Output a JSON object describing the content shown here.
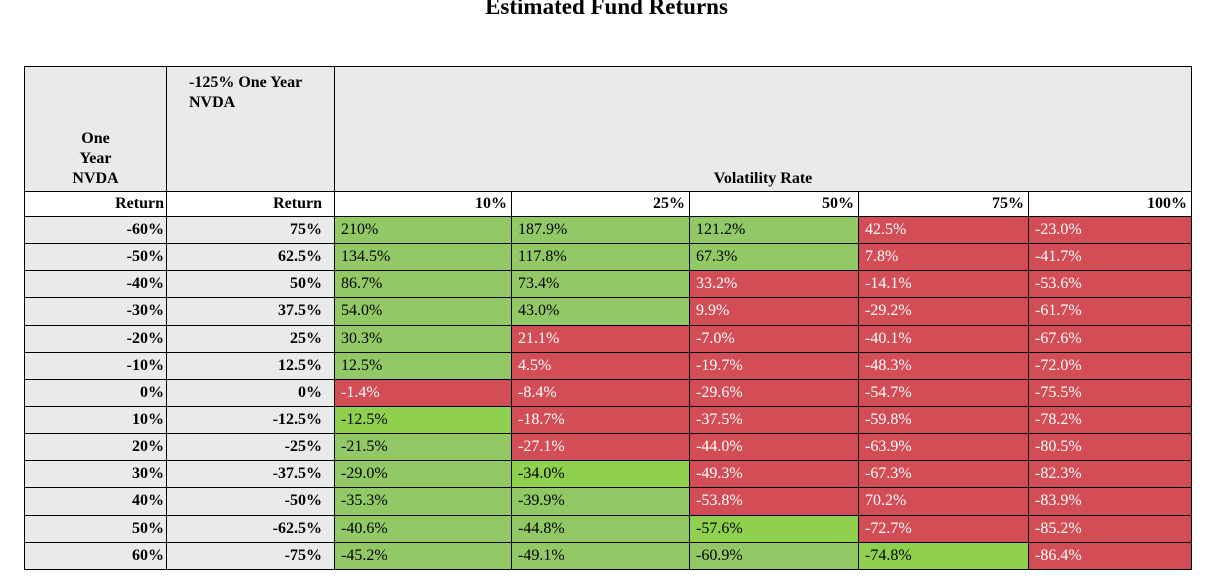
{
  "title": "Estimated Fund Returns",
  "header": {
    "nvda_label": "One Year NVDA",
    "fund_label": "-125% One Year NVDA",
    "volatility_label": "Volatility Rate",
    "return_label": "Return"
  },
  "colors": {
    "green": "#92c865",
    "bright_green": "#8fd14f",
    "red": "#d24d56",
    "header_gray": "#e9ebeb"
  },
  "chart_data": {
    "type": "table",
    "title": "Estimated Fund Returns",
    "columns": [
      "10%",
      "25%",
      "50%",
      "75%",
      "100%"
    ],
    "rows": [
      {
        "nvda": "-60%",
        "fund": "75%",
        "values": [
          "210%",
          "187.9%",
          "121.2%",
          "42.5%",
          "-23.0%"
        ],
        "colors": [
          "pos",
          "pos",
          "pos",
          "neg",
          "neg"
        ]
      },
      {
        "nvda": "-50%",
        "fund": "62.5%",
        "values": [
          "134.5%",
          "117.8%",
          "67.3%",
          "7.8%",
          "-41.7%"
        ],
        "colors": [
          "pos",
          "pos",
          "pos",
          "neg",
          "neg"
        ]
      },
      {
        "nvda": "-40%",
        "fund": "50%",
        "values": [
          "86.7%",
          "73.4%",
          "33.2%",
          "-14.1%",
          "-53.6%"
        ],
        "colors": [
          "pos",
          "pos",
          "neg",
          "neg",
          "neg"
        ]
      },
      {
        "nvda": "-30%",
        "fund": "37.5%",
        "values": [
          "54.0%",
          "43.0%",
          "9.9%",
          "-29.2%",
          "-61.7%"
        ],
        "colors": [
          "pos",
          "pos",
          "neg",
          "neg",
          "neg"
        ]
      },
      {
        "nvda": "-20%",
        "fund": "25%",
        "values": [
          "30.3%",
          "21.1%",
          "-7.0%",
          "-40.1%",
          "-67.6%"
        ],
        "colors": [
          "pos",
          "neg",
          "neg",
          "neg",
          "neg"
        ]
      },
      {
        "nvda": "-10%",
        "fund": "12.5%",
        "values": [
          "12.5%",
          "4.5%",
          "-19.7%",
          "-48.3%",
          "-72.0%"
        ],
        "colors": [
          "pos",
          "neg",
          "neg",
          "neg",
          "neg"
        ]
      },
      {
        "nvda": "0%",
        "fund": "0%",
        "values": [
          "-1.4%",
          "-8.4%",
          "-29.6%",
          "-54.7%",
          "-75.5%"
        ],
        "colors": [
          "neg",
          "neg",
          "neg",
          "neg",
          "neg"
        ]
      },
      {
        "nvda": "10%",
        "fund": "-12.5%",
        "values": [
          "-12.5%",
          "-18.7%",
          "-37.5%",
          "-59.8%",
          "-78.2%"
        ],
        "colors": [
          "bright",
          "neg",
          "neg",
          "neg",
          "neg"
        ]
      },
      {
        "nvda": "20%",
        "fund": "-25%",
        "values": [
          "-21.5%",
          "-27.1%",
          "-44.0%",
          "-63.9%",
          "-80.5%"
        ],
        "colors": [
          "pos",
          "neg",
          "neg",
          "neg",
          "neg"
        ]
      },
      {
        "nvda": "30%",
        "fund": "-37.5%",
        "values": [
          "-29.0%",
          "-34.0%",
          "-49.3%",
          "-67.3%",
          "-82.3%"
        ],
        "colors": [
          "pos",
          "bright",
          "neg",
          "neg",
          "neg"
        ]
      },
      {
        "nvda": "40%",
        "fund": "-50%",
        "values": [
          "-35.3%",
          "-39.9%",
          "-53.8%",
          "70.2%",
          "-83.9%"
        ],
        "colors": [
          "pos",
          "pos",
          "neg",
          "neg",
          "neg"
        ]
      },
      {
        "nvda": "50%",
        "fund": "-62.5%",
        "values": [
          "-40.6%",
          "-44.8%",
          "-57.6%",
          "-72.7%",
          "-85.2%"
        ],
        "colors": [
          "pos",
          "pos",
          "bright",
          "neg",
          "neg"
        ]
      },
      {
        "nvda": "60%",
        "fund": "-75%",
        "values": [
          "-45.2%",
          "-49.1%",
          "-60.9%",
          "-74.8%",
          "-86.4%"
        ],
        "colors": [
          "pos",
          "pos",
          "pos",
          "bright",
          "neg"
        ]
      }
    ]
  }
}
